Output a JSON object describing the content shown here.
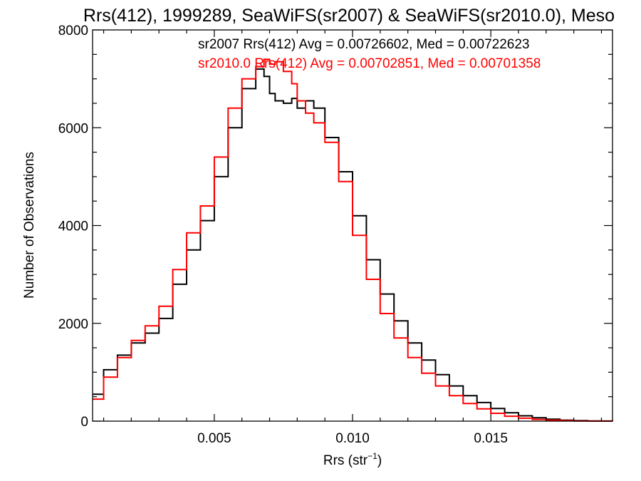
{
  "chart_data": {
    "type": "line",
    "title": "Rrs(412), 1999289, SeaWiFS(sr2007) & SeaWiFS(sr2010.0), Meso",
    "xlabel_main": "Rrs (str",
    "xlabel_sup": "−1",
    "xlabel_end": ")",
    "ylabel": "Number of Observations",
    "xlim": [
      0.0006,
      0.0194
    ],
    "ylim": [
      0,
      8000
    ],
    "xticks": [
      0.005,
      0.01,
      0.015
    ],
    "xtick_labels": [
      "0.005",
      "0.010",
      "0.015"
    ],
    "yticks": [
      0,
      2000,
      4000,
      6000,
      8000
    ],
    "ytick_labels": [
      "0",
      "2000",
      "4000",
      "6000",
      "8000"
    ],
    "grid": false,
    "legend_placement": "top-right",
    "series": [
      {
        "name": "sr2007",
        "legend": "sr2007 Rrs(412) Avg = 0.00726602, Med = 0.00722623",
        "color": "#000000",
        "x": [
          0.0006,
          0.001,
          0.0015,
          0.002,
          0.0025,
          0.003,
          0.0035,
          0.004,
          0.0045,
          0.005,
          0.0055,
          0.006,
          0.0065,
          0.0068,
          0.007,
          0.0072,
          0.0075,
          0.0078,
          0.008,
          0.0083,
          0.0086,
          0.009,
          0.0095,
          0.01,
          0.0105,
          0.011,
          0.0115,
          0.012,
          0.0125,
          0.013,
          0.0135,
          0.014,
          0.0145,
          0.015,
          0.0155,
          0.016,
          0.0165,
          0.017,
          0.0175,
          0.018,
          0.0185,
          0.019,
          0.0194
        ],
        "y": [
          550,
          1050,
          1350,
          1600,
          1800,
          2100,
          2800,
          3500,
          4100,
          5000,
          6000,
          6800,
          7200,
          7050,
          6700,
          6550,
          6500,
          6600,
          6400,
          6550,
          6400,
          5800,
          5100,
          4200,
          3300,
          2600,
          2050,
          1600,
          1250,
          950,
          720,
          520,
          380,
          260,
          170,
          110,
          70,
          40,
          20,
          10,
          5,
          2,
          0
        ]
      },
      {
        "name": "sr2010.0",
        "legend": "sr2010.0 Rrs(412) Avg = 0.00702851, Med = 0.00701358",
        "color": "#ff0000",
        "x": [
          0.0006,
          0.001,
          0.0015,
          0.002,
          0.0025,
          0.003,
          0.0035,
          0.004,
          0.0045,
          0.005,
          0.0055,
          0.006,
          0.0065,
          0.0068,
          0.007,
          0.0072,
          0.0075,
          0.0078,
          0.008,
          0.0083,
          0.0086,
          0.009,
          0.0095,
          0.01,
          0.0105,
          0.011,
          0.0115,
          0.012,
          0.0125,
          0.013,
          0.0135,
          0.014,
          0.0145,
          0.015,
          0.0155,
          0.016,
          0.0165,
          0.017,
          0.0175,
          0.018,
          0.0185,
          0.019,
          0.0194
        ],
        "y": [
          450,
          900,
          1300,
          1650,
          1950,
          2350,
          3100,
          3850,
          4400,
          5400,
          6400,
          7000,
          7250,
          7400,
          7300,
          7350,
          7150,
          6900,
          6550,
          6300,
          6100,
          5700,
          4900,
          3800,
          2900,
          2200,
          1700,
          1300,
          980,
          720,
          520,
          360,
          250,
          160,
          100,
          60,
          35,
          20,
          10,
          5,
          2,
          1,
          0
        ]
      }
    ]
  }
}
